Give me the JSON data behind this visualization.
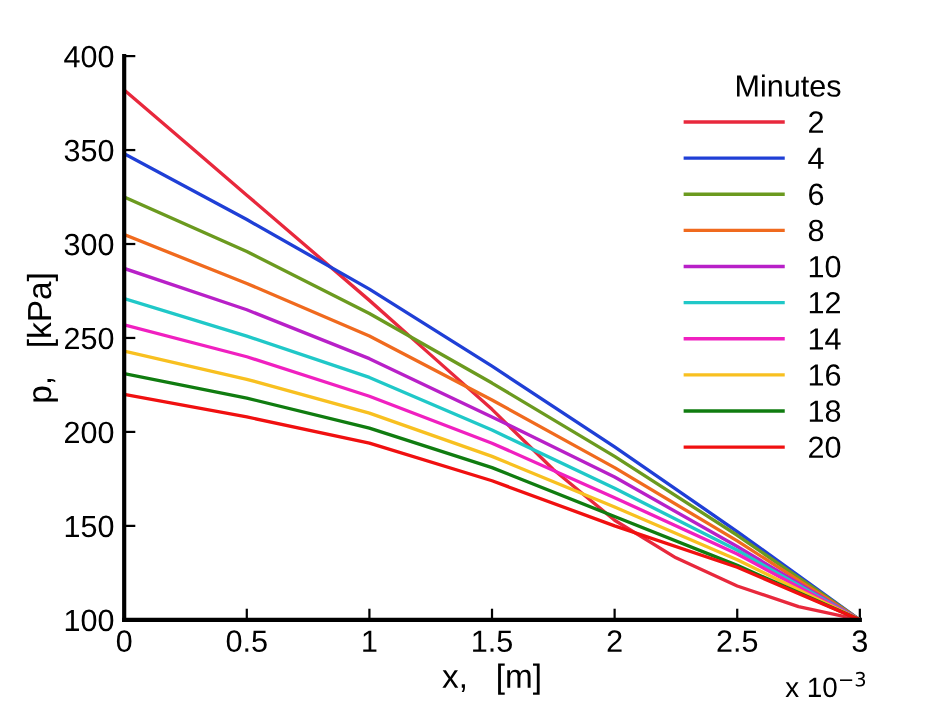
{
  "chart_data": {
    "type": "line",
    "xlabel": "x,   [m]",
    "ylabel": "p,   [kPa]",
    "legend_title": "Minutes",
    "legend": "top right",
    "grid": false,
    "marker": "none",
    "line_style": "solid",
    "xlim": [
      0,
      3
    ],
    "xticks": [
      0,
      0.5,
      1,
      1.5,
      2,
      2.5,
      3
    ],
    "ylim": [
      100,
      400
    ],
    "yticks": [
      100,
      150,
      200,
      250,
      300,
      350,
      400
    ],
    "annotations": [
      "x 10$^{−3}$"
    ],
    "series": [
      {
        "name": "2",
        "color": "#e8283c",
        "x": [
          0,
          0.25,
          0.5,
          0.75,
          1,
          1.25,
          1.5,
          1.75,
          2,
          2.25,
          2.5,
          2.75,
          3
        ],
        "values": [
          382,
          354,
          326,
          298,
          270,
          241,
          212,
          180,
          153,
          133,
          118,
          107,
          100
        ]
      },
      {
        "name": "4",
        "color": "#1f3fd6",
        "x": [
          0,
          0.5,
          1,
          1.5,
          2,
          2.5,
          3
        ],
        "values": [
          348,
          313,
          276,
          235,
          192,
          147,
          100
        ]
      },
      {
        "name": "6",
        "color": "#6b9a1f",
        "x": [
          0,
          0.5,
          1,
          1.5,
          2,
          2.5,
          3
        ],
        "values": [
          325,
          296,
          263,
          226,
          187,
          145,
          100
        ]
      },
      {
        "name": "8",
        "color": "#f06a1e",
        "x": [
          0,
          0.5,
          1,
          1.5,
          2,
          2.5,
          3
        ],
        "values": [
          305,
          279,
          251,
          217,
          181,
          142,
          100
        ]
      },
      {
        "name": "10",
        "color": "#b820c8",
        "x": [
          0,
          0.5,
          1,
          1.5,
          2,
          2.5,
          3
        ],
        "values": [
          287,
          265,
          239,
          208,
          176,
          139,
          100
        ]
      },
      {
        "name": "12",
        "color": "#20c8c8",
        "x": [
          0,
          0.5,
          1,
          1.5,
          2,
          2.5,
          3
        ],
        "values": [
          271,
          251,
          229,
          201,
          170,
          137,
          100
        ]
      },
      {
        "name": "14",
        "color": "#f020c0",
        "x": [
          0,
          0.5,
          1,
          1.5,
          2,
          2.5,
          3
        ],
        "values": [
          257,
          240,
          219,
          194,
          165,
          135,
          100
        ]
      },
      {
        "name": "16",
        "color": "#f8c020",
        "x": [
          0,
          0.5,
          1,
          1.5,
          2,
          2.5,
          3
        ],
        "values": [
          243,
          228,
          210,
          187,
          160,
          132,
          100
        ]
      },
      {
        "name": "18",
        "color": "#107c10",
        "x": [
          0,
          0.5,
          1,
          1.5,
          2,
          2.5,
          3
        ],
        "values": [
          231,
          218,
          202,
          181,
          155,
          129,
          100
        ]
      },
      {
        "name": "20",
        "color": "#f01010",
        "x": [
          0,
          0.5,
          1,
          1.5,
          2,
          2.5,
          3
        ],
        "values": [
          220,
          208,
          194,
          174,
          150,
          128,
          100
        ]
      }
    ]
  }
}
